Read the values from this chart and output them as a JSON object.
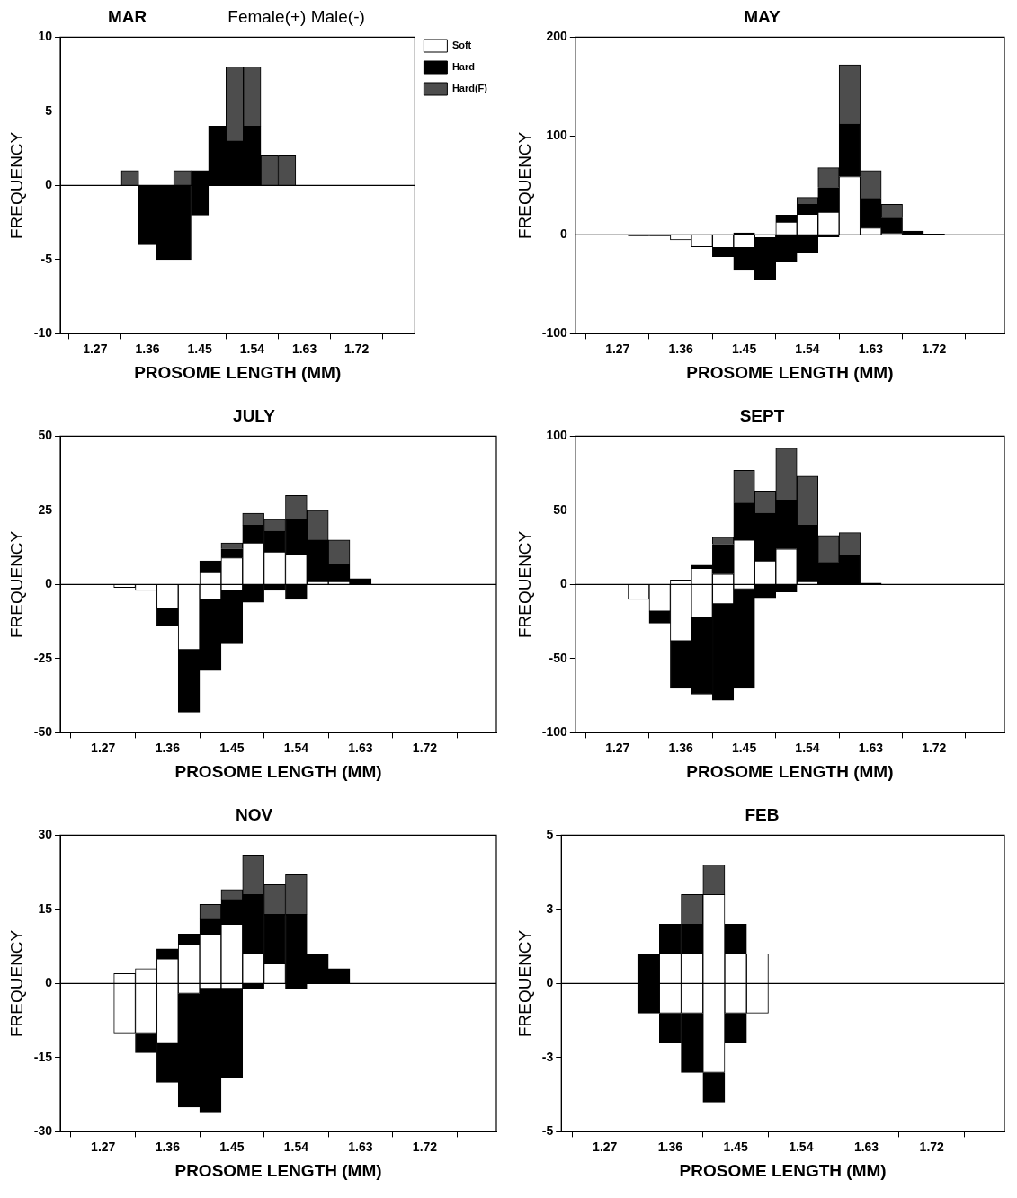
{
  "chart_data": [
    {
      "type": "bar",
      "title": "MAR",
      "subtitle": "Female(+) Male(-)",
      "xlabel": "PROSOME LENGTH (MM)",
      "ylabel": "FREQUENCY",
      "stacked": true,
      "legend": "top right",
      "x": [
        1.33,
        1.36,
        1.39,
        1.42,
        1.45,
        1.48,
        1.51,
        1.54,
        1.57,
        1.6
      ],
      "xlim": [
        1.21,
        1.82
      ],
      "xticks": [
        1.27,
        1.36,
        1.45,
        1.54,
        1.63,
        1.72
      ],
      "ylim": [
        -10,
        10
      ],
      "yticks": [
        -10,
        -5,
        0,
        5,
        10
      ],
      "series": [
        {
          "name": "Soft",
          "color": "#ffffff",
          "values": [
            null,
            null,
            null,
            null,
            null,
            null,
            null,
            null,
            null,
            null
          ]
        },
        {
          "name": "Hard",
          "color": "#000000",
          "values": [
            null,
            null,
            null,
            null,
            1,
            4,
            3,
            4,
            null,
            null
          ]
        },
        {
          "name": "Hard(F)",
          "color": "#4d4d4d",
          "values": [
            1,
            null,
            null,
            1,
            null,
            null,
            5,
            4,
            2,
            2
          ]
        },
        {
          "color": "#000000",
          "values": [
            null,
            -4,
            -5,
            -5,
            -2,
            null,
            null,
            null,
            null,
            null
          ]
        }
      ]
    },
    {
      "type": "bar",
      "title": "MAY",
      "xlabel": "PROSOME LENGTH (MM)",
      "ylabel": "FREQUENCY",
      "stacked": true,
      "x": [
        1.3,
        1.33,
        1.36,
        1.39,
        1.42,
        1.45,
        1.48,
        1.51,
        1.54,
        1.57,
        1.6,
        1.63,
        1.66,
        1.69,
        1.72
      ],
      "xlim": [
        1.21,
        1.82
      ],
      "xticks": [
        1.27,
        1.36,
        1.45,
        1.54,
        1.63,
        1.72
      ],
      "ylim": [
        -100,
        200
      ],
      "yticks": [
        -100,
        0,
        100,
        200
      ],
      "series": [
        {
          "color": "#ffffff",
          "values": [
            null,
            null,
            null,
            null,
            null,
            null,
            null,
            13,
            21,
            23,
            59,
            7,
            2,
            null,
            null
          ]
        },
        {
          "color": "#000000",
          "values": [
            null,
            null,
            null,
            null,
            null,
            2,
            null,
            7,
            10,
            25,
            53,
            30,
            15,
            4,
            1
          ]
        },
        {
          "color": "#4d4d4d",
          "values": [
            null,
            null,
            null,
            null,
            null,
            null,
            null,
            null,
            7,
            20,
            60,
            28,
            14,
            null,
            null
          ]
        },
        {
          "color": "#ffffff",
          "values": [
            null,
            null,
            -5,
            -12,
            -13,
            -13,
            -3,
            null,
            null,
            null,
            null,
            null,
            null,
            null,
            null
          ]
        },
        {
          "color": "#000000",
          "values": [
            -1,
            -1,
            null,
            null,
            -9,
            -22,
            -42,
            -27,
            -18,
            -2,
            null,
            null,
            null,
            null,
            null
          ]
        }
      ]
    },
    {
      "type": "bar",
      "title": "JULY",
      "xlabel": "PROSOME LENGTH (MM)",
      "ylabel": "FREQUENCY",
      "stacked": true,
      "x": [
        1.3,
        1.33,
        1.36,
        1.39,
        1.42,
        1.45,
        1.48,
        1.51,
        1.54,
        1.57,
        1.6,
        1.63
      ],
      "xlim": [
        1.21,
        1.82
      ],
      "xticks": [
        1.27,
        1.36,
        1.45,
        1.54,
        1.63,
        1.72
      ],
      "ylim": [
        -50,
        50
      ],
      "yticks": [
        -50,
        -25,
        0,
        25,
        50
      ],
      "series": [
        {
          "color": "#ffffff",
          "values": [
            null,
            null,
            null,
            null,
            4,
            9,
            14,
            11,
            10,
            1,
            1,
            null
          ]
        },
        {
          "color": "#000000",
          "values": [
            null,
            null,
            null,
            null,
            4,
            3,
            6,
            7,
            12,
            14,
            6,
            2
          ]
        },
        {
          "color": "#4d4d4d",
          "values": [
            null,
            null,
            null,
            null,
            null,
            2,
            4,
            4,
            8,
            10,
            8,
            null
          ]
        },
        {
          "color": "#ffffff",
          "values": [
            -1,
            -2,
            -8,
            -22,
            -5,
            -2,
            null,
            null,
            null,
            null,
            null,
            null
          ]
        },
        {
          "color": "#000000",
          "values": [
            null,
            null,
            -6,
            -21,
            -24,
            -18,
            -6,
            -2,
            -5,
            null,
            null,
            null
          ]
        }
      ]
    },
    {
      "type": "bar",
      "title": "SEPT",
      "xlabel": "PROSOME LENGTH (MM)",
      "ylabel": "FREQUENCY",
      "stacked": true,
      "x": [
        1.3,
        1.33,
        1.36,
        1.39,
        1.42,
        1.45,
        1.48,
        1.51,
        1.54,
        1.57,
        1.6,
        1.63
      ],
      "xlim": [
        1.21,
        1.82
      ],
      "xticks": [
        1.27,
        1.36,
        1.45,
        1.54,
        1.63,
        1.72
      ],
      "ylim": [
        -100,
        100
      ],
      "yticks": [
        -100,
        -50,
        0,
        50,
        100
      ],
      "series": [
        {
          "color": "#ffffff",
          "values": [
            null,
            null,
            3,
            11,
            7,
            30,
            16,
            24,
            2,
            null,
            null,
            null
          ]
        },
        {
          "color": "#000000",
          "values": [
            null,
            null,
            null,
            2,
            20,
            25,
            32,
            33,
            38,
            15,
            20,
            1
          ]
        },
        {
          "color": "#4d4d4d",
          "values": [
            null,
            null,
            null,
            null,
            5,
            22,
            15,
            35,
            33,
            18,
            15,
            null
          ]
        },
        {
          "color": "#ffffff",
          "values": [
            -10,
            -18,
            -38,
            -22,
            -13,
            -3,
            null,
            null,
            null,
            null,
            null,
            null
          ]
        },
        {
          "color": "#000000",
          "values": [
            null,
            -8,
            -32,
            -52,
            -65,
            -67,
            -9,
            -5,
            null,
            null,
            null,
            null
          ]
        }
      ]
    },
    {
      "type": "bar",
      "title": "NOV",
      "xlabel": "PROSOME LENGTH (MM)",
      "ylabel": "FREQUENCY",
      "stacked": true,
      "x": [
        1.3,
        1.33,
        1.36,
        1.39,
        1.42,
        1.45,
        1.48,
        1.51,
        1.54,
        1.57,
        1.6
      ],
      "xlim": [
        1.21,
        1.82
      ],
      "xticks": [
        1.27,
        1.36,
        1.45,
        1.54,
        1.63,
        1.72
      ],
      "ylim": [
        -30,
        30
      ],
      "yticks": [
        -30,
        -15,
        0,
        15,
        30
      ],
      "series": [
        {
          "color": "#ffffff",
          "values": [
            2,
            3,
            5,
            8,
            10,
            12,
            6,
            4,
            null,
            null,
            null
          ]
        },
        {
          "color": "#000000",
          "values": [
            null,
            null,
            2,
            2,
            3,
            5,
            12,
            10,
            14,
            6,
            3
          ]
        },
        {
          "color": "#4d4d4d",
          "values": [
            null,
            null,
            null,
            null,
            3,
            2,
            8,
            6,
            8,
            null,
            null
          ]
        },
        {
          "color": "#ffffff",
          "values": [
            -10,
            -10,
            -12,
            -2,
            -1,
            -1,
            null,
            null,
            null,
            null,
            null
          ]
        },
        {
          "color": "#000000",
          "values": [
            null,
            -4,
            -8,
            -23,
            -25,
            -18,
            -1,
            null,
            -1,
            null,
            null
          ]
        }
      ]
    },
    {
      "type": "bar",
      "title": "FEB",
      "xlabel": "PROSOME LENGTH (MM)",
      "ylabel": "FREQUENCY",
      "stacked": true,
      "x": [
        1.33,
        1.36,
        1.39,
        1.42,
        1.45,
        1.48
      ],
      "xlim": [
        1.21,
        1.82
      ],
      "xticks": [
        1.27,
        1.36,
        1.45,
        1.54,
        1.63,
        1.72
      ],
      "ylim": [
        -5,
        5
      ],
      "yticks": [
        -5,
        {
          "value": -2.5,
          "label": "-3"
        },
        0,
        {
          "value": 2.5,
          "label": "3"
        },
        5
      ],
      "series": [
        {
          "color": "#ffffff",
          "values": [
            null,
            1,
            1,
            3,
            1,
            1
          ]
        },
        {
          "color": "#000000",
          "values": [
            1,
            1,
            1,
            null,
            1,
            null
          ]
        },
        {
          "color": "#4d4d4d",
          "values": [
            null,
            null,
            1,
            1,
            null,
            null
          ]
        },
        {
          "color": "#ffffff",
          "values": [
            null,
            -1,
            -1,
            -3,
            -1,
            -1
          ]
        },
        {
          "color": "#000000",
          "values": [
            -1,
            -1,
            -2,
            -1,
            -1,
            null
          ]
        }
      ]
    }
  ]
}
